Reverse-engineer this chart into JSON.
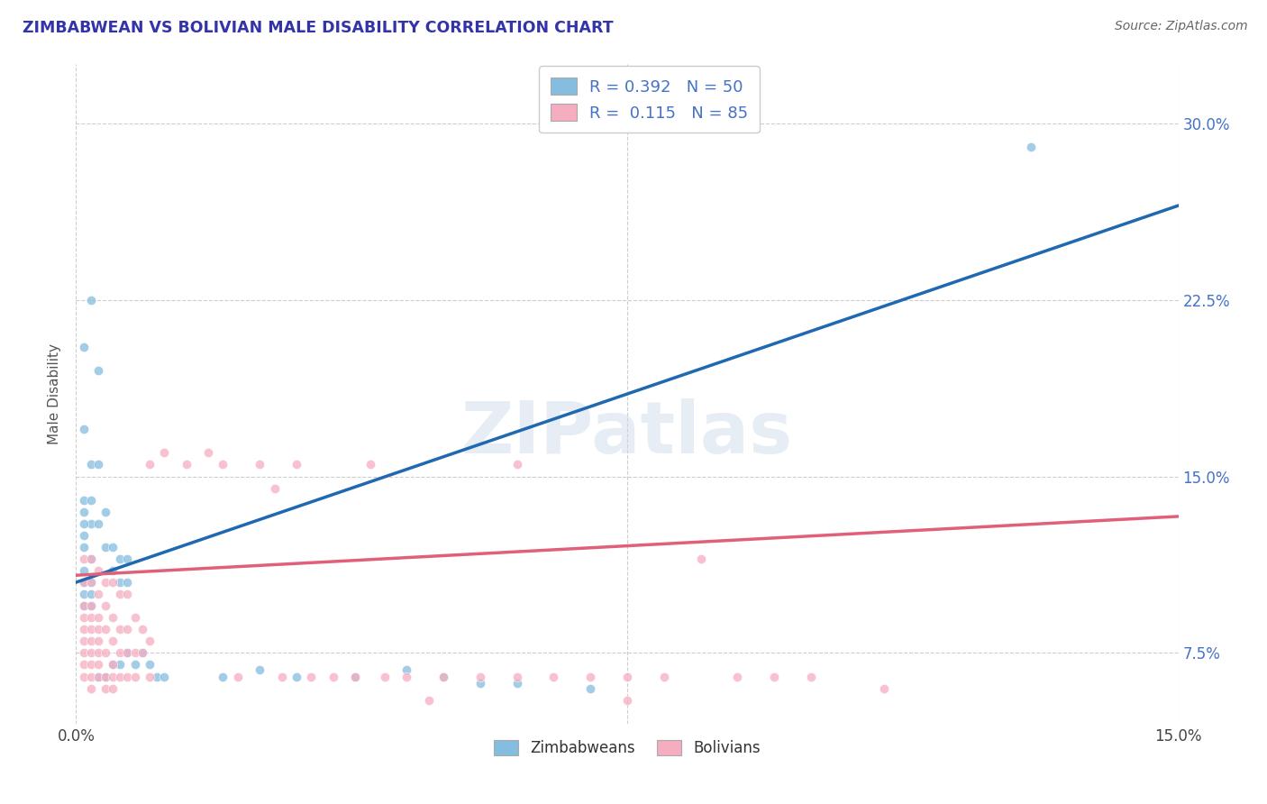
{
  "title": "ZIMBABWEAN VS BOLIVIAN MALE DISABILITY CORRELATION CHART",
  "source": "Source: ZipAtlas.com",
  "ylabel": "Male Disability",
  "watermark": "ZIPatlas",
  "xmin": 0.0,
  "xmax": 0.15,
  "ymin": 0.045,
  "ymax": 0.325,
  "zimbabwe_color": "#85bde0",
  "bolivia_color": "#f5adc0",
  "line_zim_color": "#2068b0",
  "line_bol_color": "#e0607a",
  "legend_label_zim": "R = 0.392   N = 50",
  "legend_label_bol": "R =  0.115   N = 85",
  "legend_bottom_zim": "Zimbabweans",
  "legend_bottom_bol": "Bolivians",
  "ytick_vals": [
    0.075,
    0.15,
    0.225,
    0.3
  ],
  "ytick_labels": [
    "7.5%",
    "15.0%",
    "22.5%",
    "30.0%"
  ],
  "zim_line_x": [
    0.0,
    0.15
  ],
  "zim_line_y": [
    0.105,
    0.265
  ],
  "bol_line_x": [
    0.0,
    0.15
  ],
  "bol_line_y": [
    0.108,
    0.133
  ],
  "zimbabwe_points": [
    [
      0.001,
      0.205
    ],
    [
      0.002,
      0.225
    ],
    [
      0.003,
      0.195
    ],
    [
      0.001,
      0.17
    ],
    [
      0.002,
      0.155
    ],
    [
      0.001,
      0.14
    ],
    [
      0.001,
      0.135
    ],
    [
      0.002,
      0.13
    ],
    [
      0.001,
      0.13
    ],
    [
      0.001,
      0.125
    ],
    [
      0.001,
      0.12
    ],
    [
      0.002,
      0.115
    ],
    [
      0.001,
      0.11
    ],
    [
      0.002,
      0.105
    ],
    [
      0.001,
      0.105
    ],
    [
      0.001,
      0.1
    ],
    [
      0.002,
      0.1
    ],
    [
      0.001,
      0.095
    ],
    [
      0.002,
      0.095
    ],
    [
      0.003,
      0.155
    ],
    [
      0.002,
      0.14
    ],
    [
      0.003,
      0.13
    ],
    [
      0.004,
      0.135
    ],
    [
      0.004,
      0.12
    ],
    [
      0.005,
      0.12
    ],
    [
      0.005,
      0.11
    ],
    [
      0.006,
      0.115
    ],
    [
      0.007,
      0.115
    ],
    [
      0.006,
      0.105
    ],
    [
      0.007,
      0.105
    ],
    [
      0.003,
      0.065
    ],
    [
      0.004,
      0.065
    ],
    [
      0.005,
      0.07
    ],
    [
      0.006,
      0.07
    ],
    [
      0.007,
      0.075
    ],
    [
      0.008,
      0.07
    ],
    [
      0.009,
      0.075
    ],
    [
      0.01,
      0.07
    ],
    [
      0.011,
      0.065
    ],
    [
      0.012,
      0.065
    ],
    [
      0.02,
      0.065
    ],
    [
      0.025,
      0.068
    ],
    [
      0.03,
      0.065
    ],
    [
      0.038,
      0.065
    ],
    [
      0.045,
      0.068
    ],
    [
      0.05,
      0.065
    ],
    [
      0.055,
      0.062
    ],
    [
      0.06,
      0.062
    ],
    [
      0.07,
      0.06
    ],
    [
      0.13,
      0.29
    ]
  ],
  "bolivia_points": [
    [
      0.001,
      0.115
    ],
    [
      0.001,
      0.105
    ],
    [
      0.001,
      0.095
    ],
    [
      0.001,
      0.09
    ],
    [
      0.001,
      0.085
    ],
    [
      0.001,
      0.08
    ],
    [
      0.001,
      0.075
    ],
    [
      0.001,
      0.07
    ],
    [
      0.001,
      0.065
    ],
    [
      0.002,
      0.115
    ],
    [
      0.002,
      0.105
    ],
    [
      0.002,
      0.095
    ],
    [
      0.002,
      0.09
    ],
    [
      0.002,
      0.085
    ],
    [
      0.002,
      0.08
    ],
    [
      0.002,
      0.075
    ],
    [
      0.002,
      0.07
    ],
    [
      0.002,
      0.065
    ],
    [
      0.002,
      0.06
    ],
    [
      0.003,
      0.11
    ],
    [
      0.003,
      0.1
    ],
    [
      0.003,
      0.09
    ],
    [
      0.003,
      0.085
    ],
    [
      0.003,
      0.08
    ],
    [
      0.003,
      0.075
    ],
    [
      0.003,
      0.07
    ],
    [
      0.003,
      0.065
    ],
    [
      0.004,
      0.105
    ],
    [
      0.004,
      0.095
    ],
    [
      0.004,
      0.085
    ],
    [
      0.004,
      0.075
    ],
    [
      0.004,
      0.065
    ],
    [
      0.004,
      0.06
    ],
    [
      0.005,
      0.105
    ],
    [
      0.005,
      0.09
    ],
    [
      0.005,
      0.08
    ],
    [
      0.005,
      0.07
    ],
    [
      0.005,
      0.065
    ],
    [
      0.005,
      0.06
    ],
    [
      0.006,
      0.1
    ],
    [
      0.006,
      0.085
    ],
    [
      0.006,
      0.075
    ],
    [
      0.006,
      0.065
    ],
    [
      0.007,
      0.1
    ],
    [
      0.007,
      0.085
    ],
    [
      0.007,
      0.075
    ],
    [
      0.007,
      0.065
    ],
    [
      0.008,
      0.09
    ],
    [
      0.008,
      0.075
    ],
    [
      0.008,
      0.065
    ],
    [
      0.009,
      0.085
    ],
    [
      0.009,
      0.075
    ],
    [
      0.01,
      0.155
    ],
    [
      0.01,
      0.08
    ],
    [
      0.01,
      0.065
    ],
    [
      0.012,
      0.16
    ],
    [
      0.015,
      0.155
    ],
    [
      0.018,
      0.16
    ],
    [
      0.02,
      0.155
    ],
    [
      0.022,
      0.065
    ],
    [
      0.025,
      0.155
    ],
    [
      0.027,
      0.145
    ],
    [
      0.028,
      0.065
    ],
    [
      0.03,
      0.155
    ],
    [
      0.032,
      0.065
    ],
    [
      0.035,
      0.065
    ],
    [
      0.038,
      0.065
    ],
    [
      0.04,
      0.155
    ],
    [
      0.042,
      0.065
    ],
    [
      0.045,
      0.065
    ],
    [
      0.05,
      0.065
    ],
    [
      0.055,
      0.065
    ],
    [
      0.06,
      0.155
    ],
    [
      0.06,
      0.065
    ],
    [
      0.065,
      0.065
    ],
    [
      0.07,
      0.065
    ],
    [
      0.075,
      0.065
    ],
    [
      0.08,
      0.065
    ],
    [
      0.085,
      0.115
    ],
    [
      0.09,
      0.065
    ],
    [
      0.095,
      0.065
    ],
    [
      0.1,
      0.065
    ],
    [
      0.075,
      0.055
    ],
    [
      0.11,
      0.06
    ],
    [
      0.048,
      0.055
    ]
  ]
}
